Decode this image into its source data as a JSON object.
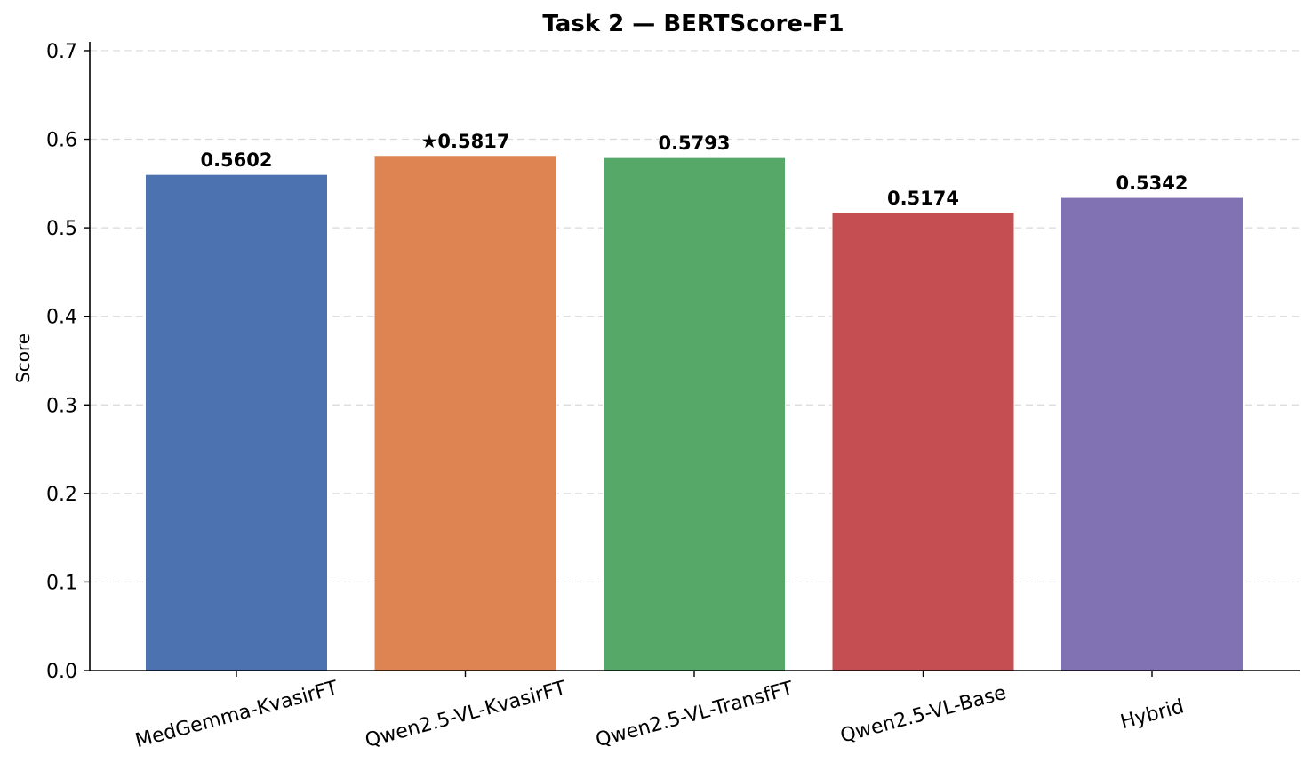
{
  "chart_data": {
    "type": "bar",
    "title": "Task 2 — BERTScore-F1",
    "xlabel": "",
    "ylabel": "Score",
    "categories": [
      "MedGemma-KvasirFT",
      "Qwen2.5-VL-KvasirFT",
      "Qwen2.5-VL-TransfFT",
      "Qwen2.5-VL-Base",
      "Hybrid"
    ],
    "values": [
      0.5602,
      0.5817,
      0.5793,
      0.5174,
      0.5342
    ],
    "value_labels": [
      "0.5602",
      "★0.5817",
      "0.5793",
      "0.5174",
      "0.5342"
    ],
    "colors": [
      "#4c72b0",
      "#dd8452",
      "#55a868",
      "#c44e52",
      "#8172b3"
    ],
    "ylim": [
      0,
      0.71
    ],
    "yticks": [
      0.0,
      0.1,
      0.2,
      0.3,
      0.4,
      0.5,
      0.6,
      0.7
    ],
    "ytick_labels": [
      "0.0",
      "0.1",
      "0.2",
      "0.3",
      "0.4",
      "0.5",
      "0.6",
      "0.7"
    ],
    "grid": true,
    "legend": "none",
    "xtick_rotation_deg": 15
  }
}
